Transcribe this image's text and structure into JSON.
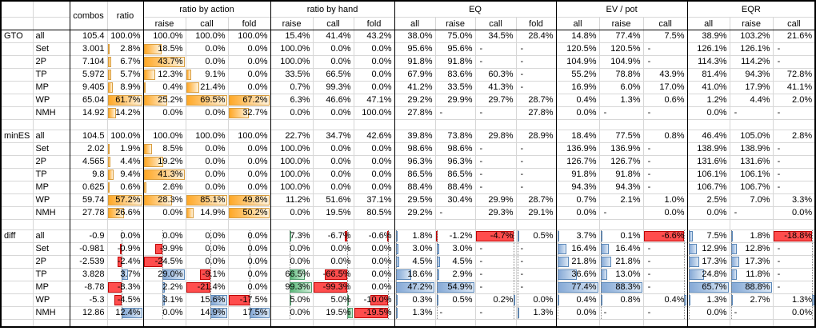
{
  "header": {
    "combos": "combos",
    "ratio": "ratio",
    "groups": [
      "ratio by action",
      "ratio by hand",
      "EQ",
      "EV / pot",
      "EQR"
    ],
    "sub": [
      "raise",
      "call",
      "fold",
      "raise",
      "call",
      "fold",
      "all",
      "raise",
      "call",
      "fold",
      "all",
      "raise",
      "call",
      "all",
      "raise",
      "call"
    ]
  },
  "columns": [
    "combos",
    "ratio",
    "act-raise",
    "act-call",
    "act-fold",
    "hand-raise",
    "hand-call",
    "hand-fold",
    "eq-all",
    "eq-raise",
    "eq-call",
    "eq-fold",
    "ev-all",
    "ev-raise",
    "ev-call",
    "eqr-all",
    "eqr-raise",
    "eqr-call"
  ],
  "sections": [
    {
      "name": "GTO",
      "rows": [
        {
          "label": "all",
          "cells": [
            "105.4",
            "100.0%",
            "100.0%",
            "100.0%",
            "100.0%",
            "15.4%",
            "41.4%",
            "43.2%",
            "38.0%",
            "75.0%",
            "34.5%",
            "28.4%",
            "14.8%",
            "77.4%",
            "7.5%",
            "38.9%",
            "103.2%",
            "21.6%"
          ]
        },
        {
          "label": "Set",
          "cells": [
            "3.001",
            "2.8%",
            "18.5%",
            "0.0%",
            "0.0%",
            "100.0%",
            "0.0%",
            "0.0%",
            "95.6%",
            "95.6%",
            "-",
            "-",
            "120.5%",
            "120.5%",
            "-",
            "126.1%",
            "126.1%",
            "-"
          ]
        },
        {
          "label": "2P",
          "cells": [
            "7.104",
            "6.7%",
            "43.7%",
            "0.0%",
            "0.0%",
            "100.0%",
            "0.0%",
            "0.0%",
            "91.8%",
            "91.8%",
            "-",
            "-",
            "104.9%",
            "104.9%",
            "-",
            "114.3%",
            "114.2%",
            "-"
          ]
        },
        {
          "label": "TP",
          "cells": [
            "5.972",
            "5.7%",
            "12.3%",
            "9.1%",
            "0.0%",
            "33.5%",
            "66.5%",
            "0.0%",
            "67.9%",
            "83.6%",
            "60.3%",
            "-",
            "55.2%",
            "78.8%",
            "43.9%",
            "81.4%",
            "94.3%",
            "72.8%"
          ]
        },
        {
          "label": "MP",
          "cells": [
            "9.405",
            "8.9%",
            "0.4%",
            "21.4%",
            "0.0%",
            "0.7%",
            "99.3%",
            "0.0%",
            "41.2%",
            "33.5%",
            "41.3%",
            "-",
            "16.9%",
            "6.0%",
            "17.0%",
            "41.0%",
            "17.9%",
            "41.1%"
          ]
        },
        {
          "label": "WP",
          "cells": [
            "65.04",
            "61.7%",
            "25.2%",
            "69.5%",
            "67.2%",
            "6.3%",
            "46.6%",
            "47.1%",
            "29.2%",
            "29.9%",
            "29.7%",
            "28.7%",
            "0.4%",
            "1.3%",
            "0.6%",
            "1.2%",
            "4.4%",
            "2.0%"
          ]
        },
        {
          "label": "NMH",
          "cells": [
            "14.92",
            "14.2%",
            "0.0%",
            "0.0%",
            "32.7%",
            "0.0%",
            "0.0%",
            "100.0%",
            "27.8%",
            "-",
            "-",
            "27.8%",
            "0.0%",
            "-",
            "-",
            "0.0%",
            "-",
            "-"
          ]
        }
      ]
    },
    {
      "name": "minES",
      "rows": [
        {
          "label": "all",
          "cells": [
            "104.5",
            "100.0%",
            "100.0%",
            "100.0%",
            "100.0%",
            "22.7%",
            "34.7%",
            "42.6%",
            "39.8%",
            "73.8%",
            "29.8%",
            "28.9%",
            "18.4%",
            "77.5%",
            "0.8%",
            "46.4%",
            "105.0%",
            "2.8%"
          ]
        },
        {
          "label": "Set",
          "cells": [
            "2.02",
            "1.9%",
            "8.5%",
            "0.0%",
            "0.0%",
            "100.0%",
            "0.0%",
            "0.0%",
            "98.6%",
            "98.6%",
            "-",
            "-",
            "136.9%",
            "136.9%",
            "-",
            "138.9%",
            "138.9%",
            "-"
          ]
        },
        {
          "label": "2P",
          "cells": [
            "4.565",
            "4.4%",
            "19.2%",
            "0.0%",
            "0.0%",
            "100.0%",
            "0.0%",
            "0.0%",
            "96.3%",
            "96.3%",
            "-",
            "-",
            "126.7%",
            "126.7%",
            "-",
            "131.6%",
            "131.6%",
            "-"
          ]
        },
        {
          "label": "TP",
          "cells": [
            "9.8",
            "9.4%",
            "41.3%",
            "0.0%",
            "0.0%",
            "100.0%",
            "0.0%",
            "0.0%",
            "86.5%",
            "86.5%",
            "-",
            "-",
            "91.8%",
            "91.8%",
            "-",
            "106.1%",
            "106.1%",
            "-"
          ]
        },
        {
          "label": "MP",
          "cells": [
            "0.625",
            "0.6%",
            "2.6%",
            "0.0%",
            "0.0%",
            "100.0%",
            "0.0%",
            "0.0%",
            "88.4%",
            "88.4%",
            "-",
            "-",
            "94.3%",
            "94.3%",
            "-",
            "106.7%",
            "106.7%",
            "-"
          ]
        },
        {
          "label": "WP",
          "cells": [
            "59.74",
            "57.2%",
            "28.3%",
            "85.1%",
            "49.8%",
            "11.2%",
            "51.6%",
            "37.1%",
            "29.5%",
            "30.4%",
            "29.9%",
            "28.7%",
            "0.7%",
            "2.1%",
            "1.0%",
            "2.5%",
            "7.0%",
            "3.3%"
          ]
        },
        {
          "label": "NMH",
          "cells": [
            "27.78",
            "26.6%",
            "0.0%",
            "14.9%",
            "50.2%",
            "0.0%",
            "19.5%",
            "80.5%",
            "29.2%",
            "-",
            "29.3%",
            "29.1%",
            "0.0%",
            "-",
            "0.0%",
            "0.0%",
            "-",
            "0.0%"
          ]
        }
      ]
    },
    {
      "name": "diff",
      "rows": [
        {
          "label": "all",
          "cells": [
            "-0.9",
            "0.0%",
            "0.0%",
            "0.0%",
            "0.0%",
            "7.3%",
            "-6.7%",
            "-0.6%",
            "1.8%",
            "-1.2%",
            "-4.7%",
            "0.5%",
            "3.7%",
            "0.1%",
            "-6.6%",
            "7.5%",
            "1.8%",
            "-18.8%"
          ]
        },
        {
          "label": "Set",
          "cells": [
            "-0.981",
            "-0.9%",
            "-9.9%",
            "0.0%",
            "0.0%",
            "0.0%",
            "0.0%",
            "0.0%",
            "3.0%",
            "3.0%",
            "-",
            "-",
            "16.4%",
            "16.4%",
            "-",
            "12.9%",
            "12.8%",
            "-"
          ]
        },
        {
          "label": "2P",
          "cells": [
            "-2.539",
            "-2.4%",
            "-24.5%",
            "0.0%",
            "0.0%",
            "0.0%",
            "0.0%",
            "0.0%",
            "4.5%",
            "4.5%",
            "-",
            "-",
            "21.8%",
            "21.8%",
            "-",
            "17.3%",
            "17.3%",
            "-"
          ]
        },
        {
          "label": "TP",
          "cells": [
            "3.828",
            "3.7%",
            "29.0%",
            "-9.1%",
            "0.0%",
            "66.5%",
            "-66.5%",
            "0.0%",
            "18.6%",
            "2.9%",
            "-",
            "-",
            "36.6%",
            "13.0%",
            "-",
            "24.8%",
            "11.8%",
            "-"
          ]
        },
        {
          "label": "MP",
          "cells": [
            "-8.78",
            "-8.3%",
            "2.2%",
            "-21.4%",
            "0.0%",
            "99.3%",
            "-99.3%",
            "0.0%",
            "47.2%",
            "54.9%",
            "-",
            "-",
            "77.4%",
            "88.3%",
            "-",
            "65.7%",
            "88.8%",
            "-"
          ]
        },
        {
          "label": "WP",
          "cells": [
            "-5.3",
            "-4.5%",
            "3.1%",
            "15.6%",
            "-17.5%",
            "5.0%",
            "5.0%",
            "-10.0%",
            "0.3%",
            "0.5%",
            "0.2%",
            "0.0%",
            "0.4%",
            "0.8%",
            "0.4%",
            "1.3%",
            "2.7%",
            "1.3%"
          ]
        },
        {
          "label": "NMH",
          "cells": [
            "12.86",
            "12.4%",
            "0.0%",
            "14.9%",
            "17.5%",
            "0.0%",
            "19.5%",
            "-19.5%",
            "1.3%",
            "-",
            "-",
            "1.3%",
            "0.0%",
            "-",
            "-",
            "0.0%",
            "-",
            "0.0%"
          ]
        }
      ]
    }
  ],
  "colors": {
    "bar_orange": "#ffa827",
    "bar_blue": "#85a9d6",
    "bar_green": "#58b878",
    "bar_red": "#ff4d4d",
    "grid_line": "#d7d7d7",
    "section_border": "#000000"
  },
  "bars": {
    "GTO": {
      "skip_first": true,
      "show_axis": false,
      "cols": {
        "1": {
          "axis": 0,
          "span": 61.7,
          "pos": "orange"
        },
        "2": {
          "axis": 0,
          "span": 43.7,
          "pos": "orange"
        },
        "3": {
          "axis": 0,
          "span": 69.5,
          "pos": "orange"
        },
        "4": {
          "axis": 0,
          "span": 67.2,
          "pos": "orange"
        }
      }
    },
    "minES": {
      "skip_first": true,
      "show_axis": false,
      "cols": {
        "1": {
          "axis": 0,
          "span": 57.2,
          "pos": "orange"
        },
        "2": {
          "axis": 0,
          "span": 41.3,
          "pos": "orange"
        },
        "3": {
          "axis": 0,
          "span": 85.1,
          "pos": "orange"
        },
        "4": {
          "axis": 0,
          "span": 50.2,
          "pos": "orange"
        }
      }
    },
    "diff": {
      "skip_first": false,
      "show_axis": true,
      "cols": {
        "1": {
          "axis": 0.4,
          "span": 20.7,
          "pos": "blue"
        },
        "2": {
          "axis": 0.46,
          "span": 53.5,
          "pos": "blue"
        },
        "3": {
          "axis": 0.58,
          "span": 37,
          "pos": "blue"
        },
        "4": {
          "axis": 0.5,
          "span": 35,
          "pos": "blue"
        },
        "5": {
          "axis": 0.45,
          "span": 180,
          "pos": "green"
        },
        "6": {
          "axis": 0.84,
          "span": 119,
          "pos": "green"
        },
        "7": {
          "axis": 0.85,
          "span": 23,
          "pos": "green"
        },
        "8": {
          "axis": 0.02,
          "span": 48,
          "pos": "blue"
        },
        "9": {
          "axis": 0.03,
          "span": 56,
          "pos": "blue"
        },
        "10": {
          "axis": 0.95,
          "span": 4.9,
          "pos": "blue"
        },
        "11": {
          "axis": 0.02,
          "span": 30,
          "pos": "blue"
        },
        "12": {
          "axis": 0.02,
          "span": 78,
          "pos": "blue"
        },
        "13": {
          "axis": 0.02,
          "span": 89,
          "pos": "blue"
        },
        "14": {
          "axis": 0.94,
          "span": 7,
          "pos": "blue"
        },
        "15": {
          "axis": 0.02,
          "span": 67,
          "pos": "blue"
        },
        "16": {
          "axis": 0.02,
          "span": 90,
          "pos": "blue"
        },
        "17": {
          "axis": 0.93,
          "span": 20,
          "pos": "blue"
        }
      }
    }
  }
}
